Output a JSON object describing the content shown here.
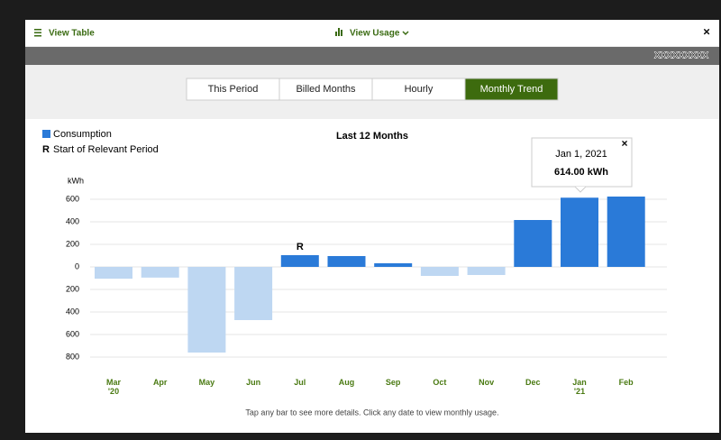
{
  "header": {
    "view_table": "View Table",
    "view_usage": "View Usage",
    "close": "×"
  },
  "account": "XXXXXXXXX",
  "tabs": [
    "This Period",
    "Billed Months",
    "Hourly",
    "Monthly Trend"
  ],
  "active_tab": "Monthly Trend",
  "footer": "Tap any bar to see more details. Click any date to view monthly usage.",
  "tooltip": {
    "date": "Jan 1, 2021",
    "value": "614.00 kWh",
    "close": "×"
  },
  "chart_data": {
    "type": "bar",
    "title": "Last 12 Months",
    "y_label": "kWh",
    "legend": {
      "consumption": "Consumption",
      "marker": "R",
      "marker_text": "Start of Relevant Period"
    },
    "categories": [
      "Mar",
      "Apr",
      "May",
      "Jun",
      "Jul",
      "Aug",
      "Sep",
      "Oct",
      "Nov",
      "Dec",
      "Jan",
      "Feb"
    ],
    "years": [
      "'20",
      null,
      null,
      null,
      null,
      null,
      null,
      null,
      null,
      null,
      "'21",
      null
    ],
    "values": [
      -105,
      -95,
      -760,
      -472,
      104,
      96,
      32,
      -80,
      -72,
      416,
      614,
      624
    ],
    "colors": [
      "#bed7f2",
      "#bed7f2",
      "#bed7f2",
      "#bed7f2",
      "#2a7ad8",
      "#2a7ad8",
      "#2a7ad8",
      "#bed7f2",
      "#bed7f2",
      "#2a7ad8",
      "#2a7ad8",
      "#2a7ad8"
    ],
    "legend_color": "#2a7ad8",
    "marker_category": "Jul",
    "ylim": [
      -800,
      600
    ],
    "yticks": [
      {
        "value": -800,
        "label": "800"
      },
      {
        "value": -600,
        "label": "600"
      },
      {
        "value": -400,
        "label": "400"
      },
      {
        "value": -200,
        "label": "200"
      },
      0,
      200,
      400,
      600
    ],
    "grid": true
  }
}
